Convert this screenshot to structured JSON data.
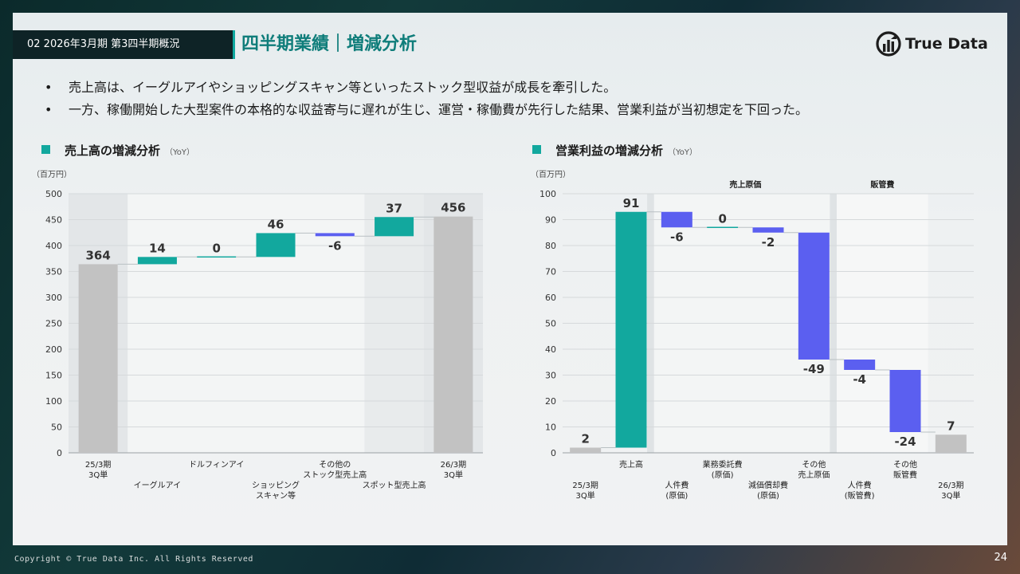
{
  "header": {
    "section_tag": "02 2026年3月期 第3四半期概況",
    "title": "四半期業績｜増減分析",
    "logo_text": "True Data"
  },
  "bullets": [
    "売上高は、イーグルアイやショッピングスキャン等といったストック型収益が成長を牽引した。",
    "一方、稼働開始した大型案件の本格的な収益寄与に遅れが生じ、運営・稼働費が先行した結果、営業利益が当初想定を下回った。"
  ],
  "colors": {
    "teal": "#12a89e",
    "blue": "#5b5ff0",
    "gray": "#c2c2c2",
    "dark": "#0e2326"
  },
  "chart_data": [
    {
      "type": "waterfall",
      "title": "売上高の増減分析",
      "subtitle": "（YoY）",
      "unit": "（百万円）",
      "ylim": [
        0,
        500
      ],
      "yticks": [
        0,
        50,
        100,
        150,
        200,
        250,
        300,
        350,
        400,
        450,
        500
      ],
      "bars": [
        {
          "label": "25/3期\n3Q単",
          "value": 364,
          "kind": "total",
          "value_label": "364"
        },
        {
          "label": "イーグルアイ",
          "value": 14,
          "kind": "delta",
          "value_label": "14"
        },
        {
          "label": "ドルフィンアイ",
          "value": 0,
          "kind": "delta",
          "value_label": "0"
        },
        {
          "label": "ショッピング\nスキャン等",
          "value": 46,
          "kind": "delta",
          "value_label": "46"
        },
        {
          "label": "その他の\nストック型売上高",
          "value": -6,
          "kind": "delta",
          "value_label": "-6"
        },
        {
          "label": "スポット型売上高",
          "value": 37,
          "kind": "delta",
          "value_label": "37"
        },
        {
          "label": "26/3期\n3Q単",
          "value": 456,
          "kind": "total",
          "value_label": "456"
        }
      ],
      "label_rows": [
        1,
        2,
        1,
        2,
        1,
        2,
        1
      ]
    },
    {
      "type": "waterfall",
      "title": "営業利益の増減分析",
      "subtitle": "（YoY）",
      "unit": "（百万円）",
      "ylim": [
        0,
        100
      ],
      "yticks": [
        0,
        10,
        20,
        30,
        40,
        50,
        60,
        70,
        80,
        90,
        100
      ],
      "groups": [
        "売上原価",
        "販管費"
      ],
      "bars": [
        {
          "label": "25/3期\n3Q単",
          "value": 2,
          "kind": "total",
          "value_label": "2"
        },
        {
          "label": "売上高",
          "value": 91,
          "kind": "delta",
          "value_label": "91"
        },
        {
          "label": "人件費\n(原価)",
          "value": -6,
          "kind": "delta",
          "value_label": "-6"
        },
        {
          "label": "業務委託費\n(原価)",
          "value": 0,
          "kind": "delta",
          "value_label": "0"
        },
        {
          "label": "減価償却費\n(原価)",
          "value": -2,
          "kind": "delta",
          "value_label": "-2"
        },
        {
          "label": "その他\n売上原価",
          "value": -49,
          "kind": "delta",
          "value_label": "-49"
        },
        {
          "label": "人件費\n(販管費)",
          "value": -4,
          "kind": "delta",
          "value_label": "-4"
        },
        {
          "label": "その他\n販管費",
          "value": -24,
          "kind": "delta",
          "value_label": "-24"
        },
        {
          "label": "26/3期\n3Q単",
          "value": 7,
          "kind": "total",
          "value_label": "7"
        }
      ],
      "label_rows": [
        2,
        1,
        2,
        1,
        2,
        1,
        2,
        1,
        2
      ]
    }
  ],
  "footer": {
    "copyright": "Copyright © True Data Inc. All Rights Reserved",
    "page": "24"
  }
}
